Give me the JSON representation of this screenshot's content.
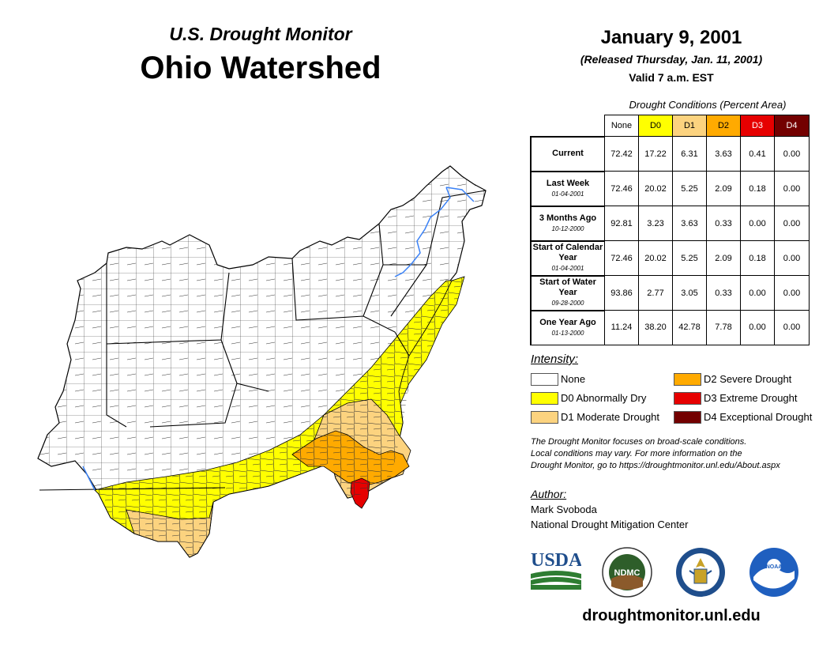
{
  "header": {
    "subtitle": "U.S. Drought Monitor",
    "title": "Ohio Watershed",
    "date": "January 9, 2001",
    "released": "(Released Thursday, Jan. 11, 2001)",
    "valid": "Valid 7 a.m. EST"
  },
  "table": {
    "caption": "Drought Conditions (Percent Area)",
    "columns": [
      {
        "label": "None",
        "bg": "#ffffff",
        "fg": "#000000"
      },
      {
        "label": "D0",
        "bg": "#ffff00",
        "fg": "#000000"
      },
      {
        "label": "D1",
        "bg": "#fcd37f",
        "fg": "#000000"
      },
      {
        "label": "D2",
        "bg": "#ffaa00",
        "fg": "#000000"
      },
      {
        "label": "D3",
        "bg": "#e60000",
        "fg": "#ffffff"
      },
      {
        "label": "D4",
        "bg": "#730000",
        "fg": "#ffffff"
      }
    ],
    "rows": [
      {
        "label": "Current",
        "sub": "",
        "values": [
          "72.42",
          "17.22",
          "6.31",
          "3.63",
          "0.41",
          "0.00"
        ]
      },
      {
        "label": "Last Week",
        "sub": "01-04-2001",
        "values": [
          "72.46",
          "20.02",
          "5.25",
          "2.09",
          "0.18",
          "0.00"
        ]
      },
      {
        "label": "3 Months Ago",
        "sub": "10-12-2000",
        "values": [
          "92.81",
          "3.23",
          "3.63",
          "0.33",
          "0.00",
          "0.00"
        ]
      },
      {
        "label": "Start of Calendar Year",
        "sub": "01-04-2001",
        "values": [
          "72.46",
          "20.02",
          "5.25",
          "2.09",
          "0.18",
          "0.00"
        ]
      },
      {
        "label": "Start of Water Year",
        "sub": "09-28-2000",
        "values": [
          "93.86",
          "2.77",
          "3.05",
          "0.33",
          "0.00",
          "0.00"
        ]
      },
      {
        "label": "One Year Ago",
        "sub": "01-13-2000",
        "values": [
          "11.24",
          "38.20",
          "42.78",
          "7.78",
          "0.00",
          "0.00"
        ]
      }
    ]
  },
  "legend": {
    "title": "Intensity:",
    "items": [
      {
        "label": "None",
        "color": "#ffffff"
      },
      {
        "label": "D0 Abnormally Dry",
        "color": "#ffff00"
      },
      {
        "label": "D1 Moderate Drought",
        "color": "#fcd37f"
      },
      {
        "label": "D2 Severe Drought",
        "color": "#ffaa00"
      },
      {
        "label": "D3 Extreme Drought",
        "color": "#e60000"
      },
      {
        "label": "D4 Exceptional Drought",
        "color": "#730000"
      }
    ]
  },
  "note": {
    "line1": "The Drought Monitor focuses on broad-scale conditions.",
    "line2": "Local conditions may vary. For more information on the",
    "line3": "Drought Monitor, go to https://droughtmonitor.unl.edu/About.aspx"
  },
  "author": {
    "title": "Author:",
    "name": "Mark Svoboda",
    "org": "National Drought Mitigation Center"
  },
  "logos": {
    "usda": "USDA",
    "ndmc": "NDMC",
    "noaa": "NOAA"
  },
  "footer": {
    "site": "droughtmonitor.unl.edu"
  }
}
